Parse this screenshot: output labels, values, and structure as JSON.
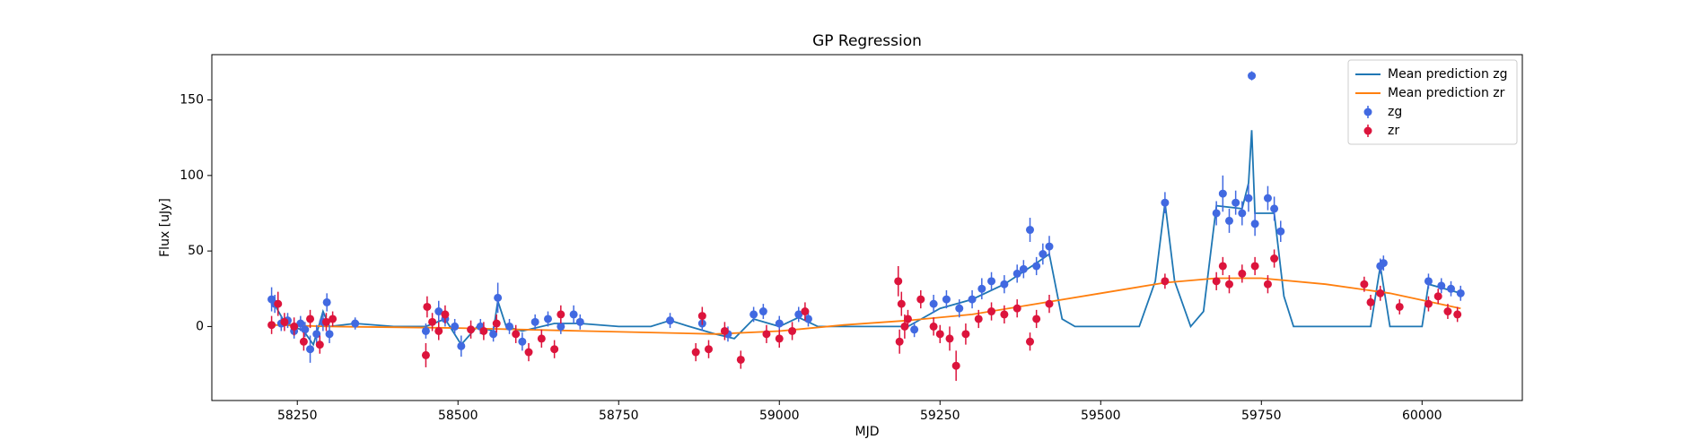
{
  "chart_data": {
    "type": "line",
    "title": "GP Regression",
    "x_label": "MJD",
    "y_label": "Flux [uJy]",
    "xlim": [
      58117,
      60156
    ],
    "ylim": [
      -49,
      180
    ],
    "xticks": [
      58250,
      58500,
      58750,
      59000,
      59250,
      59500,
      59750,
      60000
    ],
    "yticks": [
      0,
      50,
      100,
      150
    ],
    "legend": "upper right",
    "series": [
      {
        "name": "Mean prediction zg",
        "type": "line",
        "color": "#1f77b4",
        "x": [
          58210,
          58230,
          58260,
          58275,
          58290,
          58300,
          58340,
          58400,
          58450,
          58480,
          58505,
          58530,
          58555,
          58562,
          58575,
          58600,
          58650,
          58690,
          58750,
          58800,
          58830,
          58860,
          58900,
          58930,
          58960,
          59000,
          59030,
          59060,
          59150,
          59200,
          59250,
          59300,
          59350,
          59400,
          59420,
          59440,
          59460,
          59560,
          59585,
          59600,
          59615,
          59640,
          59660,
          59680,
          59720,
          59730,
          59735,
          59740,
          59770,
          59785,
          59800,
          59920,
          59935,
          59950,
          60000,
          60010,
          60060
        ],
        "values": [
          18,
          3,
          -3,
          -12,
          10,
          0,
          2,
          0,
          0,
          5,
          -12,
          0,
          -3,
          17,
          0,
          -3,
          2,
          2,
          0,
          0,
          4,
          0,
          -5,
          -8,
          5,
          0,
          6,
          0,
          0,
          0,
          12,
          18,
          28,
          42,
          48,
          5,
          0,
          0,
          30,
          82,
          30,
          0,
          10,
          80,
          78,
          95,
          130,
          75,
          75,
          20,
          0,
          0,
          40,
          0,
          0,
          28,
          22
        ]
      },
      {
        "name": "Mean prediction zr",
        "type": "line",
        "color": "#ff7f0e",
        "x": [
          58210,
          58300,
          58500,
          58700,
          58900,
          59000,
          59100,
          59200,
          59300,
          59400,
          59500,
          59600,
          59680,
          59750,
          59850,
          59950,
          60060
        ],
        "values": [
          1,
          0,
          -1,
          -3,
          -5,
          -3,
          1,
          4,
          8,
          15,
          22,
          29,
          32,
          32,
          28,
          22,
          12
        ]
      },
      {
        "name": "zg",
        "type": "errorbar",
        "color": "#4169e1",
        "x": [
          58210,
          58215,
          58225,
          58235,
          58245,
          58255,
          58262,
          58270,
          58280,
          58290,
          58296,
          58300,
          58340,
          58450,
          58470,
          58480,
          58495,
          58505,
          58535,
          58555,
          58562,
          58580,
          58600,
          58620,
          58640,
          58660,
          58680,
          58690,
          58830,
          58880,
          58920,
          58960,
          58975,
          59000,
          59030,
          59045,
          59210,
          59240,
          59260,
          59280,
          59300,
          59315,
          59330,
          59350,
          59370,
          59380,
          59390,
          59400,
          59410,
          59420,
          59600,
          59680,
          59690,
          59700,
          59710,
          59720,
          59730,
          59735,
          59740,
          59760,
          59770,
          59780,
          59935,
          59940,
          60010,
          60030,
          60045,
          60060
        ],
        "values": [
          18,
          15,
          2,
          4,
          -3,
          2,
          -2,
          -15,
          -5,
          3,
          16,
          -5,
          2,
          -3,
          10,
          5,
          0,
          -13,
          0,
          -5,
          19,
          0,
          -10,
          3,
          5,
          0,
          8,
          3,
          4,
          2,
          -5,
          8,
          10,
          2,
          8,
          5,
          -2,
          15,
          18,
          12,
          18,
          25,
          30,
          28,
          35,
          38,
          64,
          40,
          48,
          53,
          82,
          75,
          88,
          70,
          82,
          75,
          85,
          166,
          68,
          85,
          78,
          63,
          40,
          42,
          30,
          27,
          25,
          22
        ],
        "errors": [
          8,
          6,
          5,
          5,
          5,
          5,
          5,
          9,
          6,
          6,
          6,
          6,
          4,
          5,
          7,
          5,
          5,
          7,
          5,
          5,
          10,
          5,
          6,
          5,
          5,
          5,
          6,
          5,
          5,
          5,
          5,
          5,
          5,
          5,
          5,
          5,
          5,
          6,
          6,
          6,
          6,
          7,
          6,
          6,
          6,
          6,
          8,
          6,
          7,
          7,
          7,
          8,
          12,
          8,
          8,
          8,
          9,
          3,
          8,
          8,
          8,
          7,
          5,
          5,
          5,
          5,
          5,
          5
        ]
      },
      {
        "name": "zr",
        "type": "errorbar",
        "color": "#dc143c",
        "x": [
          58210,
          58220,
          58230,
          58245,
          58260,
          58270,
          58285,
          58295,
          58305,
          58450,
          58452,
          58460,
          58470,
          58480,
          58520,
          58540,
          58560,
          58590,
          58610,
          58630,
          58650,
          58660,
          58870,
          58880,
          58890,
          58915,
          58940,
          58980,
          59000,
          59020,
          59040,
          59185,
          59187,
          59190,
          59195,
          59200,
          59220,
          59240,
          59250,
          59265,
          59275,
          59290,
          59310,
          59330,
          59350,
          59370,
          59390,
          59400,
          59420,
          59600,
          59680,
          59690,
          59700,
          59720,
          59740,
          59760,
          59770,
          59910,
          59920,
          59935,
          59965,
          60010,
          60025,
          60040,
          60055
        ],
        "values": [
          1,
          15,
          3,
          0,
          -10,
          5,
          -12,
          3,
          5,
          -19,
          13,
          3,
          -3,
          8,
          -2,
          -3,
          2,
          -5,
          -17,
          -8,
          -15,
          8,
          -17,
          7,
          -15,
          -3,
          -22,
          -5,
          -8,
          -3,
          10,
          30,
          -10,
          15,
          0,
          5,
          18,
          0,
          -5,
          -8,
          -26,
          -5,
          5,
          10,
          8,
          12,
          -10,
          5,
          15,
          30,
          30,
          40,
          28,
          35,
          40,
          28,
          45,
          28,
          16,
          22,
          13,
          15,
          20,
          10,
          8
        ],
        "errors": [
          6,
          8,
          6,
          6,
          6,
          6,
          6,
          6,
          5,
          8,
          7,
          6,
          6,
          6,
          6,
          6,
          6,
          6,
          6,
          6,
          6,
          6,
          6,
          6,
          6,
          6,
          6,
          6,
          6,
          6,
          6,
          10,
          8,
          8,
          8,
          6,
          6,
          6,
          6,
          8,
          10,
          7,
          6,
          6,
          6,
          6,
          6,
          6,
          6,
          5,
          6,
          6,
          6,
          6,
          6,
          6,
          6,
          5,
          5,
          5,
          5,
          5,
          5,
          5,
          5
        ]
      }
    ]
  }
}
